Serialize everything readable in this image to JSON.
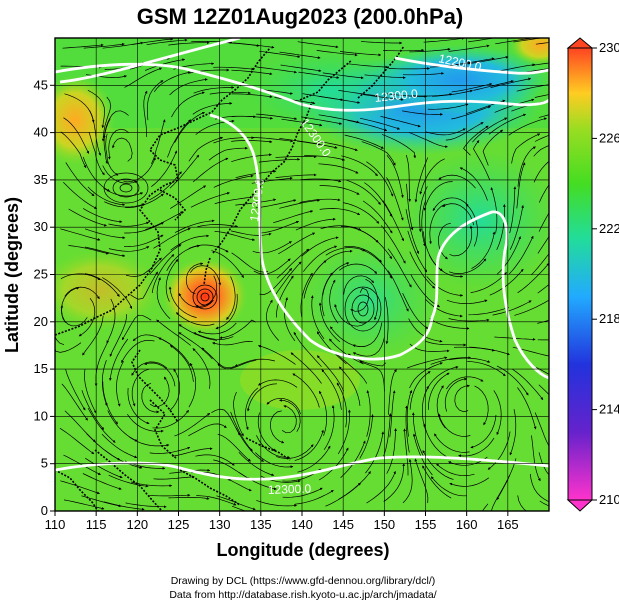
{
  "title": "GSM 12Z01Aug2023 (200.0hPa)",
  "xlabel": "Longitude (degrees)",
  "ylabel": "Latitude  (degrees)",
  "credits": [
    "Drawing by DCL (https://www.gfd-dennou.org/library/dcl/)",
    "Data from http://database.rish.kyoto-u.ac.jp/arch/jmadata/"
  ],
  "map": {
    "lon_range": [
      110,
      170
    ],
    "lat_range": [
      0,
      50
    ],
    "x_ticks": [
      "110",
      "115",
      "120",
      "125",
      "130",
      "135",
      "140",
      "145",
      "150",
      "155",
      "160",
      "165"
    ],
    "y_ticks": [
      "0",
      "5",
      "10",
      "15",
      "20",
      "25",
      "30",
      "35",
      "40",
      "45"
    ],
    "contour_labels": [
      "12200.0",
      "12300.0",
      "12300.0",
      "12300.0",
      "12300.0"
    ],
    "colorbar": {
      "ticks": [
        "210",
        "214",
        "218",
        "222",
        "226",
        "230"
      ],
      "range": [
        210,
        230
      ],
      "colors": [
        "#ff33cc",
        "#2222dd",
        "#22aaff",
        "#22dd99",
        "#55ee22",
        "#99dd22",
        "#ffcc22",
        "#ff5522"
      ]
    },
    "vortices": [
      {
        "name": "typhoon",
        "lon": 127.5,
        "lat": 24.5
      },
      {
        "name": "upper-cyclone",
        "lon": 147.5,
        "lat": 23.5
      },
      {
        "name": "anticyclone-north-china",
        "lon": 118.5,
        "lat": 37
      }
    ]
  }
}
